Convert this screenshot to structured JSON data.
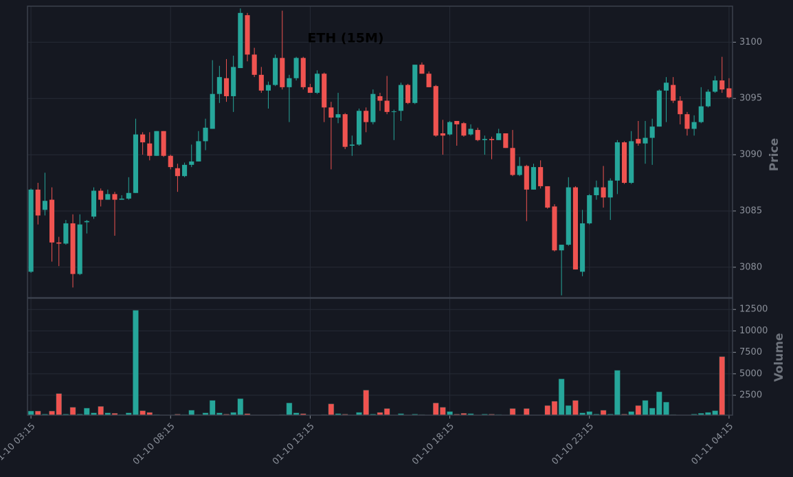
{
  "chart_data": {
    "type": "candlestick",
    "title": "ETH (15M)",
    "ylabel": "Price",
    "volume_ylabel": "Volume",
    "up_color": "#26a69a",
    "down_color": "#ef5350",
    "grid": true,
    "xlim": [
      -0.5,
      100.5
    ],
    "xticks": [
      {
        "value": 0,
        "label": "01-10 03:15"
      },
      {
        "value": 20,
        "label": "01-10 08:15"
      },
      {
        "value": 40,
        "label": "01-10 13:15"
      },
      {
        "value": 60,
        "label": "01-10 18:15"
      },
      {
        "value": 80,
        "label": "01-10 23:15"
      },
      {
        "value": 100,
        "label": "01-11 04:15"
      }
    ],
    "ylim": [
      3077.3,
      3103.2
    ],
    "yticks": [
      3080,
      3085,
      3090,
      3095,
      3100
    ],
    "volume_ylim": [
      180,
      13800
    ],
    "volume_yticks": [
      2500,
      5000,
      7500,
      10000,
      12500
    ],
    "open": [
      3079.6,
      3086.9,
      3085.1,
      3086,
      3082.2,
      3082.1,
      3083.9,
      3079.4,
      3084,
      3084.5,
      3086.8,
      3086,
      3086.5,
      3086,
      3086.1,
      3086.6,
      3091.8,
      3091,
      3089.9,
      3092.1,
      3089.9,
      3088.8,
      3088.1,
      3089.1,
      3089.4,
      3091.2,
      3092.3,
      3095.4,
      3096.8,
      3095.2,
      3097.7,
      3102.4,
      3098.9,
      3097.1,
      3095.7,
      3096.2,
      3098.6,
      3096,
      3096.8,
      3098.6,
      3096,
      3095.5,
      3097.2,
      3094.2,
      3093.3,
      3093.6,
      3090.8,
      3090.9,
      3093.9,
      3092.9,
      3095.2,
      3094.8,
      3093.8,
      3093.9,
      3096.2,
      3094.6,
      3098,
      3097.2,
      3096.1,
      3091.9,
      3091.8,
      3093,
      3092.8,
      3091.8,
      3092.2,
      3091.3,
      3091.4,
      3091.3,
      3091.9,
      3090.6,
      3088.2,
      3089,
      3086.9,
      3088.9,
      3087.2,
      3085.4,
      3081.5,
      3082,
      3087.1,
      3079.6,
      3083.9,
      3086.4,
      3087.1,
      3086.2,
      3087.7,
      3091.1,
      3087.5,
      3091.4,
      3091,
      3091.5,
      3092.5,
      3095.7,
      3096.2,
      3094.8,
      3093.6,
      3092.3,
      3092.9,
      3094.3,
      3095.6,
      3096.6,
      3095.9
    ],
    "high": [
      3087,
      3087.5,
      3088.4,
      3087.1,
      3082.7,
      3084.2,
      3084.7,
      3084.7,
      3084.2,
      3087.1,
      3087,
      3086.9,
      3086.7,
      3086.4,
      3088,
      3093.2,
      3092,
      3092,
      3092.1,
      3092.1,
      3090,
      3089.2,
      3089.3,
      3090.9,
      3092.1,
      3093.2,
      3098.4,
      3097.9,
      3098.5,
      3098.8,
      3103,
      3102.6,
      3099.5,
      3097.8,
      3096.5,
      3098.9,
      3102.8,
      3097.1,
      3098.7,
      3098.7,
      3096.3,
      3097.5,
      3097.3,
      3094.7,
      3095.5,
      3093.7,
      3091.7,
      3094.1,
      3094.2,
      3095.8,
      3095.5,
      3097,
      3094,
      3096.4,
      3096.3,
      3098,
      3098.2,
      3097.4,
      3096.2,
      3093.1,
      3093,
      3093,
      3092.9,
      3092.7,
      3092.4,
      3091.7,
      3091.6,
      3092.3,
      3091.9,
      3092.2,
      3089.8,
      3089.1,
      3089.2,
      3089.5,
      3087.2,
      3085.6,
      3082,
      3088,
      3087.2,
      3085.1,
      3086.5,
      3087.7,
      3089,
      3087.9,
      3091.3,
      3091.2,
      3092.1,
      3093,
      3093,
      3093.2,
      3095.8,
      3096.9,
      3096.9,
      3095.2,
      3093.8,
      3093.5,
      3096,
      3095.8,
      3097,
      3098.7,
      3096.8
    ],
    "low": [
      3079.5,
      3083.8,
      3084.6,
      3080.5,
      3080.1,
      3082,
      3078.2,
      3079.3,
      3083,
      3084.3,
      3085.4,
      3086,
      3082.8,
      3086,
      3086,
      3086.6,
      3090,
      3089.5,
      3089.9,
      3089.8,
      3088.7,
      3086.7,
      3088,
      3088.9,
      3089.4,
      3090.4,
      3092.3,
      3094.6,
      3094.7,
      3093.8,
      3097.7,
      3098.3,
      3096.9,
      3095.5,
      3094.1,
      3096.1,
      3095.8,
      3092.9,
      3096.6,
      3095.8,
      3095.5,
      3095.4,
      3092.9,
      3088.7,
      3092.8,
      3090.5,
      3089.9,
      3090.8,
      3092,
      3092.7,
      3093.9,
      3093.6,
      3091.3,
      3093,
      3094.5,
      3094.5,
      3097.2,
      3096,
      3091.6,
      3090,
      3091.7,
      3090.8,
      3091.6,
      3091.7,
      3091.2,
      3090,
      3089.6,
      3091.3,
      3090.6,
      3088.1,
      3088.1,
      3084.1,
      3086.9,
      3087,
      3085.2,
      3081.4,
      3077.5,
      3081.9,
      3079.8,
      3079.2,
      3083.8,
      3086,
      3085.3,
      3084.2,
      3086.5,
      3087.4,
      3087.4,
      3090.8,
      3089.2,
      3089.1,
      3092.5,
      3092.9,
      3094.6,
      3092.7,
      3091.7,
      3091.7,
      3092.8,
      3094.2,
      3095.5,
      3095.5,
      3095
    ],
    "close": [
      3086.9,
      3084.6,
      3085.9,
      3082.2,
      3082.1,
      3083.9,
      3079.4,
      3083.8,
      3084.1,
      3086.8,
      3086,
      3086.5,
      3086,
      3086.1,
      3086.6,
      3091.8,
      3091.1,
      3089.9,
      3092.1,
      3089.9,
      3088.9,
      3088.1,
      3089.1,
      3089.4,
      3091.2,
      3092.4,
      3095.4,
      3096.9,
      3095.2,
      3097.8,
      3102.6,
      3098.9,
      3097.1,
      3095.7,
      3096.2,
      3098.6,
      3096,
      3096.8,
      3098.6,
      3096,
      3095.5,
      3097.2,
      3094.2,
      3093.3,
      3093.6,
      3090.7,
      3090.9,
      3093.9,
      3092.9,
      3095.4,
      3094.8,
      3093.8,
      3093.85,
      3096.2,
      3094.6,
      3098,
      3097.2,
      3096,
      3091.7,
      3091.7,
      3092.9,
      3092.7,
      3091.7,
      3092.3,
      3091.3,
      3091.4,
      3091.3,
      3091.9,
      3090.6,
      3088.2,
      3089,
      3086.9,
      3088.9,
      3087.2,
      3085.3,
      3081.5,
      3082,
      3087.1,
      3079.8,
      3083.9,
      3086.4,
      3087.1,
      3086.2,
      3087.7,
      3091.1,
      3087.5,
      3091.2,
      3091,
      3091.5,
      3092.5,
      3095.7,
      3096.4,
      3094.8,
      3093.6,
      3092.3,
      3092.9,
      3094.3,
      3095.6,
      3096.6,
      3095.8,
      3095.1
    ],
    "volume": [
      660,
      660,
      300,
      660,
      2700,
      300,
      1100,
      300,
      1000,
      450,
      1200,
      450,
      400,
      250,
      450,
      12400,
      700,
      500,
      250,
      200,
      200,
      300,
      250,
      750,
      250,
      450,
      1900,
      450,
      300,
      500,
      2100,
      350,
      200,
      200,
      200,
      200,
      250,
      1600,
      450,
      350,
      200,
      200,
      250,
      1500,
      350,
      300,
      200,
      500,
      3100,
      300,
      500,
      950,
      200,
      350,
      200,
      300,
      250,
      200,
      1600,
      1100,
      600,
      300,
      400,
      350,
      200,
      300,
      300,
      250,
      200,
      950,
      200,
      950,
      200,
      200,
      1300,
      1800,
      4400,
      1300,
      1900,
      450,
      600,
      300,
      750,
      300,
      5400,
      300,
      600,
      1300,
      1900,
      1000,
      2900,
      1700,
      250,
      200,
      200,
      300,
      400,
      500,
      700,
      7000,
      200
    ]
  }
}
